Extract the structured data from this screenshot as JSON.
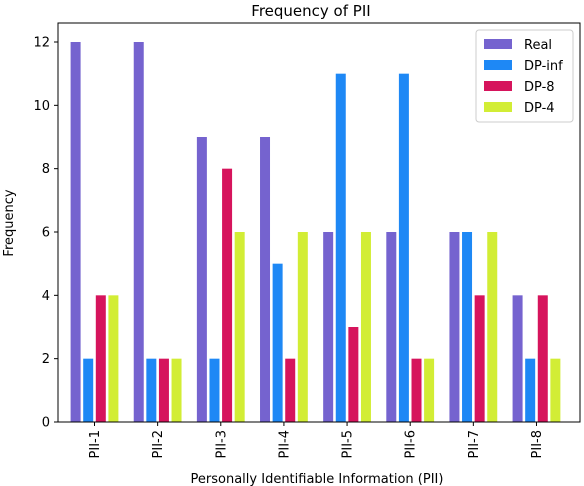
{
  "chart_data": {
    "type": "bar",
    "title": "Frequency of PII",
    "xlabel": "Personally Identifiable Information (PII)",
    "ylabel": "Frequency",
    "categories": [
      "PII-1",
      "PII-2",
      "PII-3",
      "PII-4",
      "PII-5",
      "PII-6",
      "PII-7",
      "PII-8"
    ],
    "series": [
      {
        "name": "Real",
        "color": "#7563cf",
        "values": [
          12,
          12,
          9,
          9,
          6,
          6,
          6,
          4
        ]
      },
      {
        "name": "DP-inf",
        "color": "#1e88f5",
        "values": [
          2,
          2,
          2,
          5,
          11,
          11,
          6,
          2
        ]
      },
      {
        "name": "DP-8",
        "color": "#d6145c",
        "values": [
          4,
          2,
          8,
          2,
          3,
          2,
          4,
          4
        ]
      },
      {
        "name": "DP-4",
        "color": "#d2ed35",
        "values": [
          4,
          2,
          6,
          6,
          6,
          2,
          6,
          2
        ]
      }
    ],
    "ylim": [
      0,
      12.6
    ],
    "yticks": [
      0,
      2,
      4,
      6,
      8,
      10,
      12
    ],
    "grid": false,
    "legend_position": "top-right"
  }
}
